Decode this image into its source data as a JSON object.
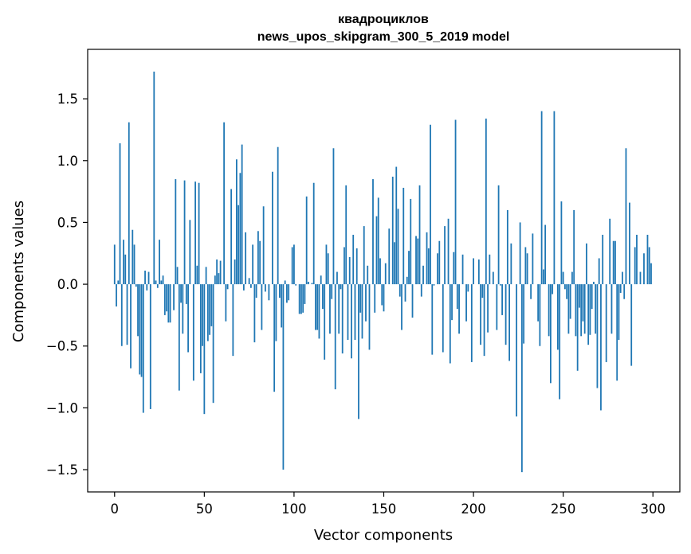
{
  "chart_data": {
    "type": "bar",
    "title_line1": "квадроциклов",
    "title_line2": "news_upos_skipgram_300_5_2019 model",
    "xlabel": "Vector components",
    "ylabel": "Components values",
    "xlim": [
      -15,
      315
    ],
    "ylim": [
      -1.68,
      1.9
    ],
    "xticks": [
      0,
      50,
      100,
      150,
      200,
      250,
      300
    ],
    "xtick_labels": [
      "0",
      "50",
      "100",
      "150",
      "200",
      "250",
      "300"
    ],
    "yticks": [
      -1.5,
      -1.0,
      -0.5,
      0.0,
      0.5,
      1.0,
      1.5
    ],
    "ytick_labels": [
      "−1.5",
      "−1.0",
      "−0.5",
      "0.0",
      "0.5",
      "1.0",
      "1.5"
    ],
    "bar_color": "#1f77b4",
    "grid": false,
    "x": "0..299",
    "values": [
      0.32,
      -0.18,
      0.03,
      1.14,
      -0.5,
      0.36,
      0.24,
      -0.49,
      1.31,
      -0.68,
      0.44,
      0.32,
      -0.02,
      -0.42,
      -0.73,
      -0.75,
      -1.04,
      0.11,
      -0.05,
      0.1,
      -1.01,
      0.0,
      1.72,
      0.03,
      -0.03,
      0.36,
      0.03,
      0.07,
      -0.25,
      -0.22,
      -0.31,
      -0.31,
      0.0,
      -0.21,
      0.85,
      0.14,
      -0.86,
      -0.15,
      -0.4,
      0.84,
      -0.16,
      -0.55,
      0.52,
      0.0,
      -0.78,
      0.83,
      0.15,
      0.82,
      -0.72,
      -0.5,
      -1.05,
      0.14,
      -0.46,
      -0.41,
      -0.34,
      -0.96,
      0.07,
      0.2,
      0.09,
      0.19,
      0.0,
      1.31,
      -0.3,
      -0.04,
      0.0,
      0.77,
      -0.58,
      0.2,
      1.01,
      0.64,
      0.9,
      1.13,
      -0.05,
      0.42,
      0.0,
      0.05,
      -0.03,
      0.32,
      -0.47,
      -0.11,
      0.43,
      0.35,
      -0.37,
      0.63,
      -0.06,
      0.0,
      -0.13,
      0.0,
      0.91,
      -0.87,
      -0.46,
      1.11,
      -0.11,
      -0.35,
      -1.5,
      0.03,
      -0.15,
      -0.13,
      0.0,
      0.3,
      0.32,
      -0.01,
      0.0,
      -0.24,
      -0.24,
      -0.23,
      -0.16,
      0.71,
      0.02,
      0.0,
      0.01,
      0.82,
      -0.37,
      -0.37,
      -0.44,
      0.07,
      -0.2,
      -0.61,
      0.32,
      0.25,
      -0.4,
      -0.12,
      1.1,
      -0.85,
      0.1,
      -0.4,
      -0.04,
      -0.56,
      0.3,
      0.8,
      -0.45,
      0.22,
      -0.6,
      0.4,
      -0.45,
      0.29,
      -1.09,
      -0.23,
      -0.44,
      0.47,
      -0.3,
      0.15,
      -0.53,
      0.0,
      0.85,
      -0.23,
      0.55,
      0.7,
      0.21,
      -0.17,
      -0.22,
      0.17,
      0.0,
      0.45,
      0.0,
      0.87,
      0.34,
      0.95,
      0.61,
      -0.1,
      -0.37,
      0.78,
      -0.14,
      0.06,
      0.27,
      0.69,
      -0.27,
      0.0,
      0.39,
      0.37,
      0.8,
      -0.1,
      0.15,
      0.0,
      0.42,
      0.29,
      1.29,
      -0.57,
      -0.01,
      0.0,
      0.25,
      0.35,
      0.0,
      -0.55,
      0.47,
      0.0,
      0.53,
      -0.64,
      -0.29,
      0.26,
      1.33,
      -0.2,
      -0.4,
      0.0,
      0.24,
      0.0,
      -0.3,
      -0.06,
      0.0,
      -0.63,
      0.21,
      0.0,
      0.0,
      0.2,
      -0.49,
      -0.11,
      -0.58,
      1.34,
      -0.39,
      0.24,
      0.0,
      0.1,
      0.0,
      -0.37,
      0.8,
      -0.01,
      -0.25,
      0.0,
      -0.49,
      0.6,
      -0.62,
      0.33,
      0.0,
      0.0,
      -1.07,
      0.0,
      0.5,
      -1.52,
      -0.48,
      0.3,
      0.25,
      0.0,
      -0.12,
      0.41,
      0.0,
      0.0,
      -0.3,
      -0.5,
      1.4,
      0.12,
      0.48,
      0.0,
      -0.42,
      -0.8,
      -0.08,
      1.4,
      0.0,
      -0.53,
      -0.93,
      0.67,
      0.1,
      -0.04,
      -0.12,
      -0.4,
      -0.28,
      0.1,
      0.6,
      -0.42,
      -0.7,
      -0.19,
      -0.42,
      -0.3,
      -0.4,
      0.33,
      -0.49,
      -0.41,
      -0.2,
      0.02,
      -0.4,
      -0.84,
      0.21,
      -1.02,
      0.4,
      0.0,
      -0.63,
      0.0,
      0.53,
      -0.4,
      0.35,
      0.35,
      -0.78,
      -0.45,
      -0.07,
      0.1,
      -0.12,
      1.1,
      0.0,
      0.66,
      -0.66,
      0.0,
      0.3,
      0.4,
      0.0,
      0.1,
      0.0,
      0.25,
      0.0,
      0.4,
      0.3,
      0.17
    ]
  }
}
